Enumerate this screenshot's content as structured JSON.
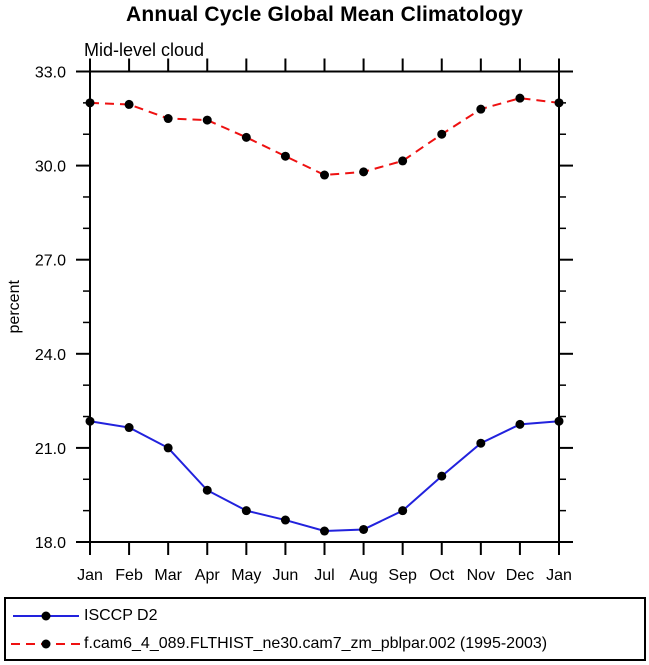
{
  "chart": {
    "title": "Annual Cycle Global Mean Climatology",
    "subtitle": "Mid-level cloud",
    "ylabel": "percent"
  },
  "legend": {
    "entries": [
      {
        "label": "ISCCP D2",
        "color": "#2222dd",
        "style": "solid"
      },
      {
        "label": "f.cam6_4_089.FLTHIST_ne30.cam7_zm_pblpar.002 (1995-2003)",
        "color": "#ee1111",
        "style": "dashed"
      }
    ]
  },
  "chart_data": {
    "type": "line",
    "title": "Annual Cycle Global Mean Climatology",
    "subtitle": "Mid-level cloud",
    "xlabel": "",
    "ylabel": "percent",
    "categories": [
      "Jan",
      "Feb",
      "Mar",
      "Apr",
      "May",
      "Jun",
      "Jul",
      "Aug",
      "Sep",
      "Oct",
      "Nov",
      "Dec",
      "Jan"
    ],
    "ylim": [
      18.0,
      33.0
    ],
    "ytick_major": [
      18.0,
      21.0,
      24.0,
      27.0,
      30.0,
      33.0
    ],
    "ytick_labels": [
      "18.0",
      "21.0",
      "24.0",
      "27.0",
      "30.0",
      "33.0"
    ],
    "ytick_minor_step": 1.0,
    "grid": false,
    "legend_position": "bottom",
    "marker": "filled-circle",
    "marker_color": "#000000",
    "series": [
      {
        "name": "ISCCP D2",
        "color": "#2222dd",
        "line_style": "solid",
        "values": [
          21.85,
          21.65,
          21.0,
          19.65,
          19.0,
          18.7,
          18.35,
          18.4,
          19.0,
          20.1,
          21.15,
          21.75,
          21.85
        ]
      },
      {
        "name": "f.cam6_4_089.FLTHIST_ne30.cam7_zm_pblpar.002 (1995-2003)",
        "color": "#ee1111",
        "line_style": "dashed",
        "values": [
          32.0,
          31.95,
          31.5,
          31.45,
          30.9,
          30.3,
          29.7,
          29.8,
          30.15,
          31.0,
          31.8,
          32.15,
          32.0
        ]
      }
    ]
  }
}
